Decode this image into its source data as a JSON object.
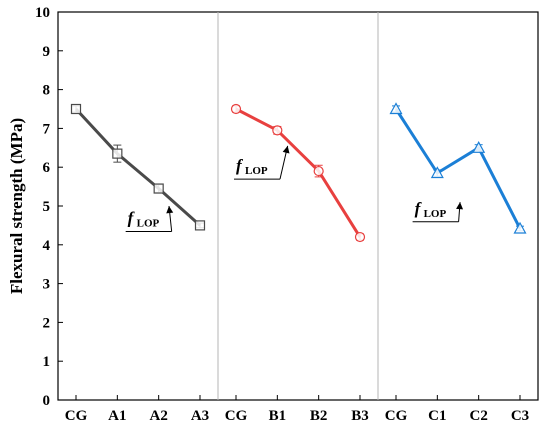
{
  "chart_data": {
    "type": "line",
    "ylabel": "Flexural strength (MPa)",
    "xlabel": "",
    "ylim": [
      0,
      10
    ],
    "yticks": [
      "0",
      "1",
      "2",
      "3",
      "4",
      "5",
      "6",
      "7",
      "8",
      "9",
      "10"
    ],
    "groups": [
      {
        "categories": [
          "CG",
          "A1",
          "A2",
          "A3"
        ],
        "values": [
          7.5,
          6.35,
          5.45,
          4.5
        ],
        "errors": [
          0.08,
          0.22,
          0.1,
          0.06
        ],
        "color": "#4a4a4a",
        "marker": "square",
        "annotation": {
          "main": "f",
          "sub": "LOP"
        }
      },
      {
        "categories": [
          "CG",
          "B1",
          "B2",
          "B3"
        ],
        "values": [
          7.5,
          6.95,
          5.9,
          4.2
        ],
        "errors": [
          0.08,
          0.1,
          0.15,
          0.08
        ],
        "color": "#e8403f",
        "marker": "circle",
        "annotation": {
          "main": "f",
          "sub": "LOP"
        }
      },
      {
        "categories": [
          "CG",
          "C1",
          "C2",
          "C3"
        ],
        "values": [
          7.5,
          5.85,
          6.5,
          4.42
        ],
        "errors": [
          0.08,
          0.08,
          0.08,
          0.06
        ],
        "color": "#1b7fd6",
        "marker": "triangle",
        "annotation": {
          "main": "f",
          "sub": "LOP"
        }
      }
    ],
    "grid": false,
    "separators": true
  }
}
